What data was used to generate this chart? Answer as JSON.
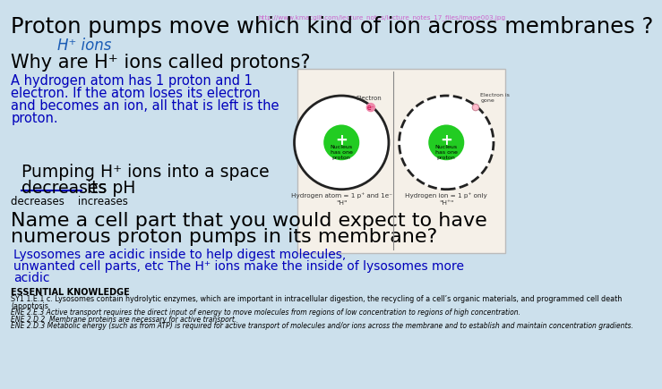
{
  "bg_color": "#cce0ec",
  "url_text": "http://www.kmacgill.com/lecture_notes/lecture_notes_17_files/image003.jpg",
  "title": "Proton pumps move which kind of ion across membranes ?",
  "answer": "H⁺ ions",
  "q2": "Why are H⁺ ions called protons?",
  "body1_lines": [
    "A hydrogen atom has 1 proton and 1",
    "electron. If the atom loses its electron",
    "and becomes an ion, all that is left is the",
    "proton."
  ],
  "pumping_line1": "Pumping H⁺ ions into a space",
  "pumping_line2_a": "decreases",
  "pumping_line2_b": " its pH",
  "choices": "decreases    increases",
  "q3_line1": "Name a cell part that you would expect to have",
  "q3_line2": "numerous proton pumps in its membrane?",
  "answer2_lines": [
    "Lysosomes are acidic inside to help digest molecules,",
    "unwanted cell parts, etc The H⁺ ions make the inside of lysosomes more",
    "acidic"
  ],
  "essential": "ESSENTIAL KNOWLEDGE",
  "ess1": "SY1 1.E.1 c. Lysosomes contain hydrolytic enzymes, which are important in intracellular digestion, the recycling of a cell’s organic materials, and programmed cell death",
  "ess1b": "(apoptosis",
  "ess2": "ENE 2.E.3 Active transport requires the direct input of energy to move molecules from regions of low concentration to regions of high concentration.",
  "ess3": "ENE 2.D.2  Membrane proteins are necessary for active transport.",
  "ess4": "ENE 2.D.3 Metabolic energy (such as from ATP) is required for active transport of molecules and/or ions across the membrane and to establish and maintain concentration gradients.",
  "title_color": "#000000",
  "answer_color": "#1a5cb5",
  "q2_color": "#000000",
  "body1_color": "#0000bb",
  "pumping_color": "#000000",
  "choices_color": "#000000",
  "q3_color": "#000000",
  "answer2_color": "#0000bb",
  "url_color": "#cc66cc",
  "diagram_bg": "#f5f0e8",
  "diagram_border": "#bbbbbb"
}
